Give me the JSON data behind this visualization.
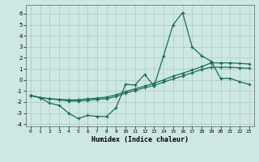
{
  "xlabel": "Humidex (Indice chaleur)",
  "background_color": "#cde8e4",
  "grid_color": "#b0c8c4",
  "line_color": "#1a6b5a",
  "xlim": [
    -0.5,
    23.5
  ],
  "ylim": [
    -4.2,
    6.8
  ],
  "xtick_labels": [
    "0",
    "1",
    "2",
    "3",
    "4",
    "5",
    "6",
    "7",
    "8",
    "9",
    "10",
    "11",
    "12",
    "13",
    "14",
    "15",
    "16",
    "17",
    "18",
    "19",
    "20",
    "21",
    "22",
    "23"
  ],
  "xtick_vals": [
    0,
    1,
    2,
    3,
    4,
    5,
    6,
    7,
    8,
    9,
    10,
    11,
    12,
    13,
    14,
    15,
    16,
    17,
    18,
    19,
    20,
    21,
    22,
    23
  ],
  "ytick_vals": [
    -4,
    -3,
    -2,
    -1,
    0,
    1,
    2,
    3,
    4,
    5,
    6
  ],
  "series_x": [
    0,
    1,
    2,
    3,
    4,
    5,
    6,
    7,
    8,
    9,
    10,
    11,
    12,
    13,
    14,
    15,
    16,
    17,
    18,
    19,
    20,
    21,
    22,
    23
  ],
  "series1": [
    -1.4,
    -1.6,
    -2.1,
    -2.3,
    -3.0,
    -3.5,
    -3.2,
    -3.3,
    -3.3,
    -2.5,
    -0.4,
    -0.45,
    0.5,
    -0.55,
    2.2,
    5.0,
    6.1,
    3.0,
    2.2,
    1.7,
    0.15,
    0.15,
    -0.15,
    -0.4
  ],
  "series2": [
    -1.4,
    -1.6,
    -1.7,
    -1.75,
    -1.8,
    -1.8,
    -1.7,
    -1.65,
    -1.55,
    -1.35,
    -1.05,
    -0.8,
    -0.55,
    -0.3,
    0.0,
    0.35,
    0.6,
    0.9,
    1.2,
    1.55,
    1.55,
    1.55,
    1.5,
    1.45
  ],
  "series3": [
    -1.4,
    -1.6,
    -1.7,
    -1.8,
    -1.9,
    -1.9,
    -1.85,
    -1.75,
    -1.7,
    -1.5,
    -1.2,
    -0.95,
    -0.7,
    -0.5,
    -0.2,
    0.1,
    0.35,
    0.65,
    0.95,
    1.15,
    1.15,
    1.15,
    1.1,
    1.05
  ]
}
